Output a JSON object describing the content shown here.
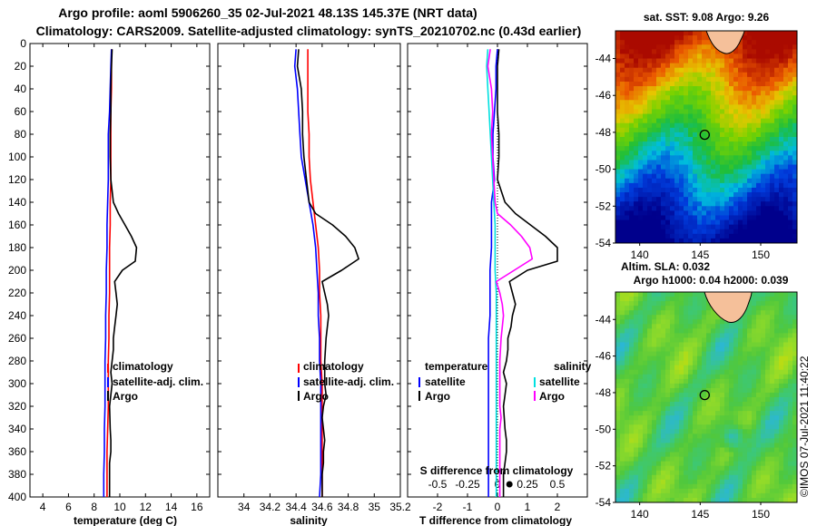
{
  "title": {
    "line1": "Argo profile: aoml 5906260_35 02-Jul-2021 48.13S 145.37E (NRT data)",
    "line2": "Climatology: CARS2009. Satellite-adjusted climatology: synTS_20210702.nc (0.43d earlier)"
  },
  "colors": {
    "climatology": "#ff0000",
    "satellite": "#0000ff",
    "argo": "#000000",
    "sat_salinity": "#00e0e0",
    "argo_salinity": "#ff00ff"
  },
  "chart_data": [
    {
      "id": "temperature",
      "type": "line",
      "xlabel": "temperature (deg C)",
      "xlim": [
        3,
        17
      ],
      "ylim": [
        0,
        400
      ],
      "xticks": [
        "4",
        "6",
        "8",
        "10",
        "12",
        "14",
        "16"
      ],
      "yticks": [
        "0",
        "20",
        "40",
        "60",
        "80",
        "100",
        "120",
        "140",
        "160",
        "180",
        "200",
        "220",
        "240",
        "260",
        "280",
        "300",
        "320",
        "340",
        "360",
        "380",
        "400"
      ],
      "legend": [
        "climatology",
        "satellite-adj. clim.",
        "Argo"
      ],
      "series": [
        {
          "name": "climatology",
          "color": "#ff0000",
          "x": [
            9.35,
            9.35,
            9.35,
            9.3,
            9.3,
            9.3,
            9.3,
            9.25,
            9.25,
            9.2,
            9.2,
            9.2,
            9.15,
            9.15,
            9.1,
            9.1,
            9.1,
            9.05,
            9.0,
            9.0,
            9.0
          ],
          "y": [
            5,
            20,
            40,
            60,
            80,
            100,
            120,
            140,
            160,
            180,
            200,
            220,
            240,
            260,
            280,
            300,
            320,
            340,
            360,
            380,
            400
          ]
        },
        {
          "name": "satellite-adj. clim.",
          "color": "#0000ff",
          "x": [
            9.35,
            9.3,
            9.25,
            9.2,
            9.1,
            9.1,
            9.1,
            9.05,
            9.0,
            9.0,
            8.95,
            8.95,
            8.9,
            8.9,
            8.85,
            8.85,
            8.85,
            8.8,
            8.8,
            8.75,
            8.75
          ],
          "y": [
            5,
            20,
            40,
            60,
            80,
            100,
            120,
            140,
            160,
            180,
            200,
            220,
            240,
            260,
            280,
            300,
            320,
            340,
            360,
            380,
            400
          ]
        },
        {
          "name": "Argo",
          "color": "#000000",
          "x": [
            9.4,
            9.35,
            9.3,
            9.3,
            9.25,
            9.25,
            9.3,
            9.5,
            9.9,
            10.4,
            10.9,
            11.3,
            11.2,
            10.2,
            9.6,
            9.7,
            9.8,
            9.7,
            9.6,
            9.5,
            9.5,
            9.4,
            9.3,
            9.4,
            9.3,
            9.2,
            9.25,
            9.3,
            9.3,
            9.2,
            9.2,
            9.2
          ],
          "y": [
            5,
            20,
            40,
            60,
            80,
            100,
            120,
            140,
            150,
            160,
            170,
            180,
            192,
            200,
            210,
            220,
            230,
            240,
            250,
            260,
            270,
            280,
            290,
            300,
            310,
            320,
            340,
            350,
            360,
            370,
            380,
            400
          ]
        }
      ]
    },
    {
      "id": "salinity",
      "type": "line",
      "xlabel": "salinity",
      "xlim": [
        33.8,
        35.2
      ],
      "ylim": [
        0,
        400
      ],
      "xticks": [
        "34",
        "34.2",
        "34.4",
        "34.6",
        "34.8",
        "35",
        "35.2"
      ],
      "legend": [
        "climatology",
        "satellite-adj. clim.",
        "Argo"
      ],
      "series": [
        {
          "name": "climatology",
          "color": "#ff0000",
          "x": [
            34.49,
            34.49,
            34.49,
            34.49,
            34.5,
            34.5,
            34.51,
            34.53,
            34.55,
            34.57,
            34.58,
            34.58,
            34.59,
            34.59,
            34.59,
            34.6,
            34.6,
            34.6,
            34.6,
            34.6,
            34.6
          ],
          "y": [
            5,
            20,
            40,
            60,
            80,
            100,
            120,
            140,
            160,
            180,
            200,
            220,
            240,
            260,
            280,
            300,
            320,
            340,
            360,
            380,
            400
          ]
        },
        {
          "name": "satellite-adj. clim.",
          "color": "#0000ff",
          "x": [
            34.4,
            34.39,
            34.41,
            34.42,
            34.43,
            34.44,
            34.47,
            34.5,
            34.53,
            34.55,
            34.56,
            34.57,
            34.57,
            34.58,
            34.58,
            34.59,
            34.59,
            34.59,
            34.59,
            34.59,
            34.58
          ],
          "y": [
            5,
            20,
            40,
            60,
            80,
            100,
            120,
            140,
            160,
            180,
            200,
            220,
            240,
            260,
            280,
            300,
            320,
            340,
            360,
            380,
            400
          ]
        },
        {
          "name": "Argo",
          "color": "#000000",
          "x": [
            34.42,
            34.41,
            34.44,
            34.45,
            34.45,
            34.46,
            34.48,
            34.5,
            34.55,
            34.68,
            34.78,
            34.85,
            34.88,
            34.75,
            34.6,
            34.62,
            34.64,
            34.65,
            34.63,
            34.62,
            34.62,
            34.63,
            34.61,
            34.6,
            34.61,
            34.62,
            34.61,
            34.61,
            34.6,
            34.6,
            34.6
          ],
          "y": [
            5,
            20,
            40,
            60,
            80,
            100,
            120,
            140,
            150,
            160,
            170,
            180,
            190,
            200,
            210,
            220,
            230,
            240,
            260,
            280,
            300,
            310,
            320,
            330,
            340,
            350,
            360,
            370,
            380,
            390,
            400
          ]
        }
      ]
    },
    {
      "id": "difference",
      "type": "line",
      "xlabel": "T difference from climatology",
      "x2label": "S difference from climatology",
      "xlim": [
        -3,
        3
      ],
      "x2lim": [
        -0.75,
        0.75
      ],
      "ylim": [
        0,
        400
      ],
      "xticks": [
        "-2",
        "-1",
        "0",
        "1",
        "2"
      ],
      "x2ticks": [
        "-0.5",
        "-0.25",
        "0",
        "0.25",
        "0.5"
      ],
      "legend_left_title": "temperature",
      "legend_right_title": "salinity",
      "legend_left": [
        "satellite",
        "Argo"
      ],
      "legend_right": [
        "satellite",
        "Argo"
      ],
      "series": [
        {
          "name": "temperature satellite",
          "color": "#0000ff",
          "axis": "T",
          "x": [
            0.0,
            -0.05,
            -0.05,
            -0.1,
            -0.15,
            -0.15,
            -0.1,
            -0.2,
            -0.2,
            -0.2,
            -0.25,
            -0.25,
            -0.25,
            -0.3,
            -0.3,
            -0.3,
            -0.3,
            -0.3,
            -0.3,
            -0.3,
            -0.3
          ],
          "y": [
            5,
            20,
            40,
            60,
            80,
            100,
            120,
            140,
            160,
            180,
            200,
            220,
            240,
            260,
            280,
            300,
            320,
            340,
            360,
            380,
            400
          ]
        },
        {
          "name": "temperature Argo",
          "color": "#000000",
          "axis": "T",
          "x": [
            0.05,
            0.0,
            0.0,
            0.0,
            0.05,
            0.05,
            0.0,
            0.25,
            0.6,
            1.1,
            1.6,
            2.0,
            2.0,
            1.0,
            0.4,
            0.5,
            0.6,
            0.5,
            0.45,
            0.35,
            0.35,
            0.3,
            0.2,
            0.3,
            0.25,
            0.2,
            0.25,
            0.3,
            0.3,
            0.25,
            0.2,
            0.2
          ],
          "y": [
            5,
            20,
            40,
            60,
            80,
            100,
            120,
            140,
            150,
            160,
            170,
            180,
            192,
            200,
            210,
            220,
            230,
            240,
            250,
            260,
            270,
            280,
            290,
            300,
            310,
            320,
            340,
            350,
            360,
            370,
            380,
            400
          ]
        },
        {
          "name": "salinity satellite",
          "color": "#00e0e0",
          "axis": "S",
          "x": [
            -0.08,
            -0.09,
            -0.08,
            -0.07,
            -0.06,
            -0.05,
            -0.04,
            -0.03,
            -0.02,
            -0.02,
            -0.02,
            -0.01,
            -0.01,
            -0.01,
            -0.01,
            -0.01,
            -0.01,
            -0.01,
            -0.01,
            -0.01,
            -0.01
          ],
          "y": [
            5,
            20,
            40,
            60,
            80,
            100,
            120,
            140,
            160,
            180,
            200,
            220,
            240,
            260,
            280,
            300,
            320,
            340,
            360,
            380,
            400
          ]
        },
        {
          "name": "salinity Argo",
          "color": "#ff00ff",
          "axis": "S",
          "x": [
            -0.06,
            -0.08,
            -0.05,
            -0.04,
            -0.05,
            -0.04,
            -0.03,
            -0.02,
            0.0,
            0.11,
            0.2,
            0.27,
            0.29,
            0.14,
            -0.01,
            0.02,
            0.04,
            0.05,
            0.03,
            0.02,
            0.02,
            0.02,
            0.02,
            0.03,
            0.02,
            0.02,
            0.02,
            0.02,
            0.02,
            0.02,
            0.02
          ],
          "y": [
            5,
            20,
            40,
            60,
            80,
            100,
            120,
            140,
            150,
            160,
            170,
            180,
            190,
            200,
            210,
            220,
            230,
            240,
            260,
            280,
            300,
            310,
            320,
            330,
            340,
            350,
            360,
            370,
            380,
            390,
            400
          ]
        }
      ]
    },
    {
      "id": "sst_map",
      "type": "heatmap",
      "title": "sat. SST: 9.08 Argo: 9.26",
      "xlim": [
        138,
        153
      ],
      "ylim": [
        -54,
        -42.5
      ],
      "xticks": [
        "140",
        "145",
        "150"
      ],
      "yticks": [
        "-44",
        "-46",
        "-48",
        "-50",
        "-52",
        "-54"
      ],
      "marker": {
        "lon": 145.37,
        "lat": -48.13
      }
    },
    {
      "id": "sla_map",
      "type": "heatmap",
      "title": "Altim. SLA: 0.032",
      "subtitle": "Argo h1000: 0.04 h2000: 0.039",
      "xlim": [
        138,
        153
      ],
      "ylim": [
        -54,
        -42.5
      ],
      "xticks": [
        "140",
        "145",
        "150"
      ],
      "yticks": [
        "-44",
        "-46",
        "-48",
        "-50",
        "-52",
        "-54"
      ],
      "marker": {
        "lon": 145.37,
        "lat": -48.13
      }
    }
  ],
  "watermark": "©IMOS 07-Jul-2021 11:40:22"
}
